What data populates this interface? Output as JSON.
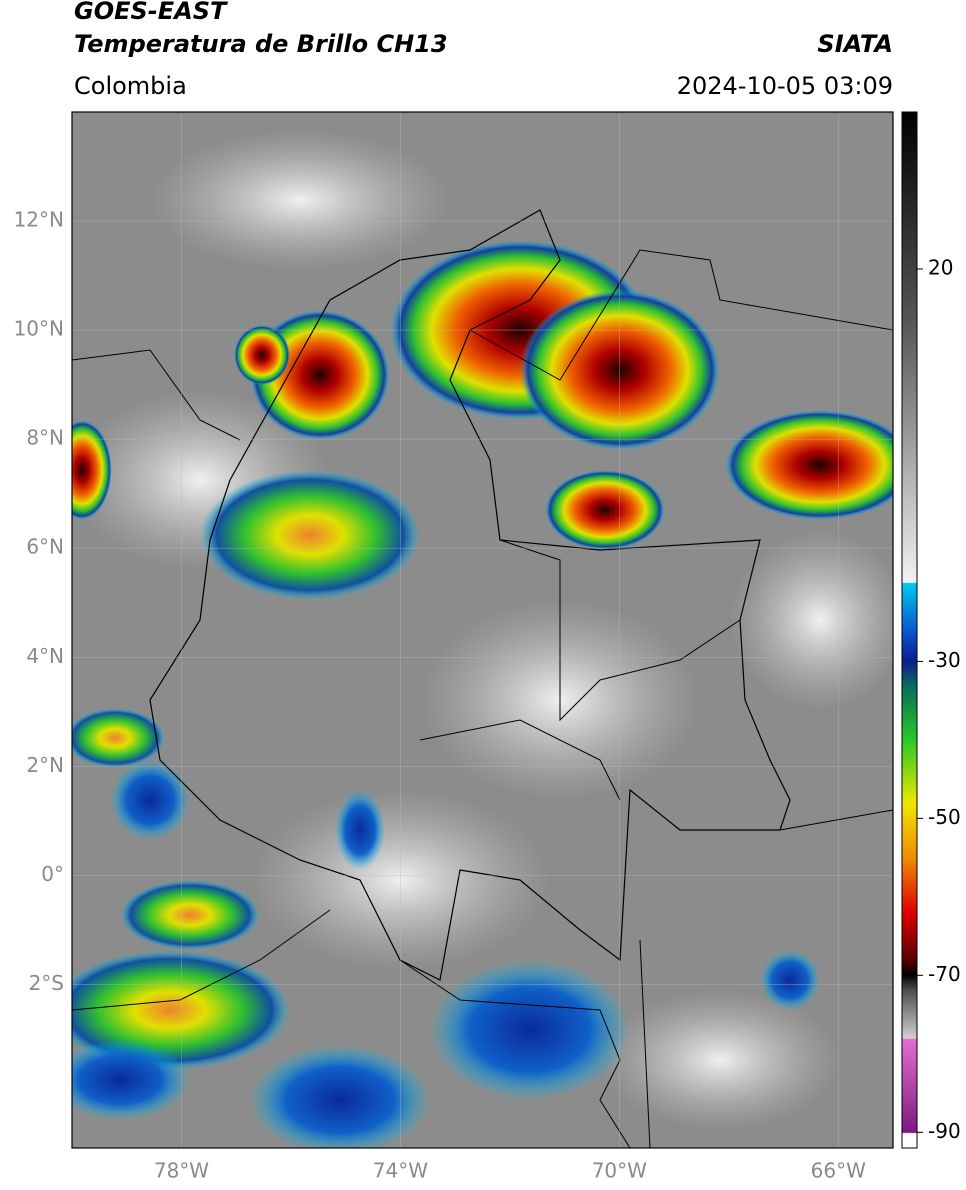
{
  "header": {
    "satellite": "GOES-EAST",
    "product": "Temperatura de Brillo CH13",
    "source": "SIATA",
    "region": "Colombia",
    "timestamp": "2024-10-05 03:09"
  },
  "map": {
    "lon_range": [
      -80,
      -65
    ],
    "lat_range": [
      -5,
      14
    ],
    "lat_ticks": [
      {
        "value": 12,
        "label": "12°N"
      },
      {
        "value": 10,
        "label": "10°N"
      },
      {
        "value": 8,
        "label": "8°N"
      },
      {
        "value": 6,
        "label": "6°N"
      },
      {
        "value": 4,
        "label": "4°N"
      },
      {
        "value": 2,
        "label": "2°N"
      },
      {
        "value": 0,
        "label": "0°"
      },
      {
        "value": -2,
        "label": "2°S"
      }
    ],
    "lon_ticks": [
      {
        "value": -78,
        "label": "78°W"
      },
      {
        "value": -74,
        "label": "74°W"
      },
      {
        "value": -70,
        "label": "70°W"
      },
      {
        "value": -66,
        "label": "66°W"
      }
    ]
  },
  "colorbar": {
    "range": [
      -92,
      40
    ],
    "ticks": [
      20,
      -30,
      -50,
      -70,
      -90
    ]
  }
}
